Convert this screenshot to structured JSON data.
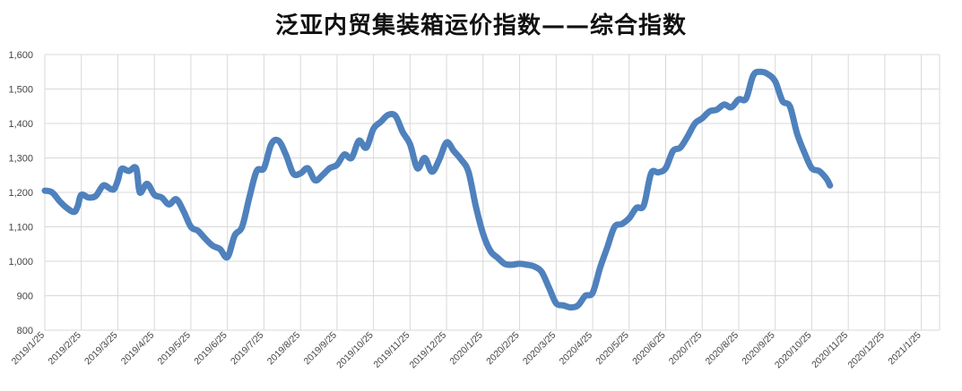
{
  "chart_data": {
    "type": "line",
    "title": "泛亚内贸集装箱运价指数——综合指数",
    "xlabel": "",
    "ylabel": "",
    "ylim": [
      800,
      1600
    ],
    "yticks": [
      "800",
      "900",
      "1,000",
      "1,100",
      "1,200",
      "1,300",
      "1,400",
      "1,500",
      "1,600"
    ],
    "xticks": [
      "2019/1/25",
      "2019/2/25",
      "2019/3/25",
      "2019/4/25",
      "2019/5/25",
      "2019/6/25",
      "2019/7/25",
      "2019/8/25",
      "2019/9/25",
      "2019/10/25",
      "2019/11/25",
      "2019/12/25",
      "2020/1/25",
      "2020/2/25",
      "2020/3/25",
      "2020/4/25",
      "2020/5/25",
      "2020/6/25",
      "2020/7/25",
      "2020/8/25",
      "2020/9/25",
      "2020/10/25",
      "2020/11/25",
      "2020/12/25",
      "2021/1/25"
    ],
    "grid": true,
    "legend": "none",
    "series_color": "#4f81bd",
    "series": [
      {
        "values": [
          [
            0.0,
            1205
          ],
          [
            0.2,
            1200
          ],
          [
            0.4,
            1175
          ],
          [
            0.6,
            1155
          ],
          [
            0.8,
            1143
          ],
          [
            0.9,
            1160
          ],
          [
            1.0,
            1193
          ],
          [
            1.2,
            1185
          ],
          [
            1.4,
            1190
          ],
          [
            1.6,
            1220
          ],
          [
            1.8,
            1210
          ],
          [
            1.9,
            1210
          ],
          [
            2.0,
            1235
          ],
          [
            2.1,
            1268
          ],
          [
            2.3,
            1262
          ],
          [
            2.5,
            1270
          ],
          [
            2.6,
            1200
          ],
          [
            2.8,
            1225
          ],
          [
            3.0,
            1193
          ],
          [
            3.2,
            1185
          ],
          [
            3.4,
            1165
          ],
          [
            3.6,
            1180
          ],
          [
            3.8,
            1145
          ],
          [
            4.0,
            1100
          ],
          [
            4.2,
            1088
          ],
          [
            4.4,
            1065
          ],
          [
            4.6,
            1045
          ],
          [
            4.8,
            1035
          ],
          [
            5.0,
            1012
          ],
          [
            5.2,
            1075
          ],
          [
            5.4,
            1100
          ],
          [
            5.6,
            1185
          ],
          [
            5.8,
            1262
          ],
          [
            6.0,
            1270
          ],
          [
            6.2,
            1340
          ],
          [
            6.4,
            1350
          ],
          [
            6.6,
            1310
          ],
          [
            6.8,
            1255
          ],
          [
            7.0,
            1255
          ],
          [
            7.2,
            1270
          ],
          [
            7.4,
            1235
          ],
          [
            7.6,
            1250
          ],
          [
            7.8,
            1270
          ],
          [
            8.0,
            1280
          ],
          [
            8.2,
            1310
          ],
          [
            8.4,
            1300
          ],
          [
            8.6,
            1350
          ],
          [
            8.8,
            1330
          ],
          [
            9.0,
            1385
          ],
          [
            9.2,
            1405
          ],
          [
            9.4,
            1425
          ],
          [
            9.6,
            1422
          ],
          [
            9.8,
            1375
          ],
          [
            10.0,
            1340
          ],
          [
            10.2,
            1270
          ],
          [
            10.4,
            1300
          ],
          [
            10.6,
            1260
          ],
          [
            10.8,
            1295
          ],
          [
            11.0,
            1345
          ],
          [
            11.2,
            1320
          ],
          [
            11.4,
            1295
          ],
          [
            11.6,
            1260
          ],
          [
            11.8,
            1160
          ],
          [
            12.0,
            1080
          ],
          [
            12.2,
            1030
          ],
          [
            12.4,
            1010
          ],
          [
            12.6,
            992
          ],
          [
            12.8,
            990
          ],
          [
            13.0,
            993
          ],
          [
            13.2,
            990
          ],
          [
            13.4,
            985
          ],
          [
            13.6,
            970
          ],
          [
            13.8,
            925
          ],
          [
            14.0,
            878
          ],
          [
            14.2,
            872
          ],
          [
            14.4,
            866
          ],
          [
            14.6,
            872
          ],
          [
            14.8,
            900
          ],
          [
            15.0,
            908
          ],
          [
            15.2,
            980
          ],
          [
            15.4,
            1040
          ],
          [
            15.6,
            1100
          ],
          [
            15.8,
            1108
          ],
          [
            16.0,
            1125
          ],
          [
            16.2,
            1155
          ],
          [
            16.4,
            1162
          ],
          [
            16.6,
            1255
          ],
          [
            16.8,
            1258
          ],
          [
            17.0,
            1270
          ],
          [
            17.2,
            1320
          ],
          [
            17.4,
            1330
          ],
          [
            17.6,
            1362
          ],
          [
            17.8,
            1400
          ],
          [
            18.0,
            1415
          ],
          [
            18.2,
            1435
          ],
          [
            18.4,
            1440
          ],
          [
            18.6,
            1455
          ],
          [
            18.8,
            1447
          ],
          [
            19.0,
            1470
          ],
          [
            19.2,
            1472
          ],
          [
            19.4,
            1540
          ],
          [
            19.6,
            1550
          ],
          [
            19.8,
            1543
          ],
          [
            20.0,
            1522
          ],
          [
            20.2,
            1465
          ],
          [
            20.4,
            1450
          ],
          [
            20.6,
            1370
          ],
          [
            20.8,
            1315
          ],
          [
            21.0,
            1270
          ],
          [
            21.2,
            1262
          ],
          [
            21.4,
            1240
          ],
          [
            21.5,
            1220
          ]
        ]
      }
    ]
  }
}
